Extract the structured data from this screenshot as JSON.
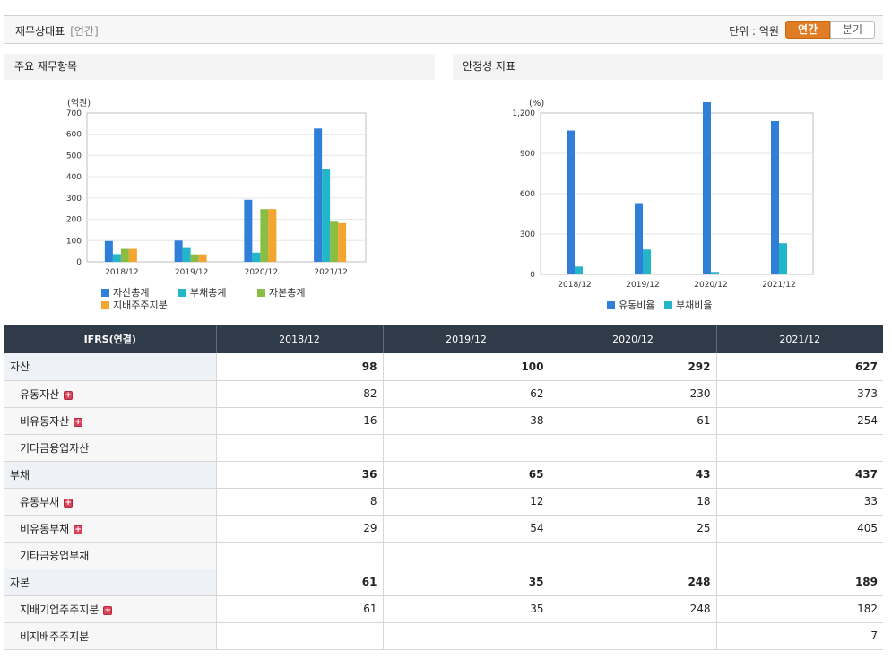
{
  "header": {
    "title": "재무상태표",
    "subtitle": "[연간]",
    "unit_label": "단위 : 억원",
    "toggle_annual": "연간",
    "toggle_quarter": "분기"
  },
  "panels": {
    "left_title": "주요 재무항목",
    "right_title": "안정성 지표"
  },
  "chart_data": [
    {
      "type": "bar",
      "title": "주요 재무항목",
      "ylabel": "(억원)",
      "ylim": [
        0,
        700
      ],
      "yticks": [
        0,
        100,
        200,
        300,
        400,
        500,
        600,
        700
      ],
      "yticklabels": [
        "0",
        "100",
        "200",
        "300",
        "400",
        "500",
        "600",
        "700"
      ],
      "categories": [
        "2018/12",
        "2019/12",
        "2020/12",
        "2021/12"
      ],
      "series": [
        {
          "name": "자산총계",
          "color": "#2f7ed8",
          "values": [
            98,
            100,
            292,
            627
          ]
        },
        {
          "name": "부채총계",
          "color": "#23b5c8",
          "values": [
            36,
            65,
            43,
            437
          ]
        },
        {
          "name": "자본총계",
          "color": "#8bbd45",
          "values": [
            61,
            35,
            248,
            189
          ]
        },
        {
          "name": "지배주주지분",
          "color": "#f4a530",
          "values": [
            61,
            35,
            248,
            182
          ]
        }
      ],
      "grid": true,
      "legend": "bottom-left"
    },
    {
      "type": "bar",
      "title": "안정성 지표",
      "ylabel": "(%)",
      "ylim": [
        0,
        1200
      ],
      "yticks": [
        0,
        300,
        600,
        900,
        1200
      ],
      "yticklabels": [
        "0",
        "300",
        "600",
        "900",
        "1,200"
      ],
      "categories": [
        "2018/12",
        "2019/12",
        "2020/12",
        "2021/12"
      ],
      "series": [
        {
          "name": "유동비율",
          "color": "#2f7ed8",
          "values": [
            1070,
            530,
            1280,
            1140
          ]
        },
        {
          "name": "부채비율",
          "color": "#23b5c8",
          "values": [
            58,
            185,
            18,
            232
          ]
        }
      ],
      "grid": true,
      "legend": "bottom"
    }
  ],
  "table": {
    "headers": [
      "IFRS(연결)",
      "2018/12",
      "2019/12",
      "2020/12",
      "2021/12"
    ],
    "rows": [
      {
        "label": "자산",
        "values": [
          "98",
          "100",
          "292",
          "627"
        ]
      },
      {
        "label": "유동자산",
        "values": [
          "82",
          "62",
          "230",
          "373"
        ]
      },
      {
        "label": "비유동자산",
        "values": [
          "16",
          "38",
          "61",
          "254"
        ]
      },
      {
        "label": "기타금융업자산",
        "values": [
          "",
          "",
          "",
          ""
        ]
      },
      {
        "label": "부채",
        "values": [
          "36",
          "65",
          "43",
          "437"
        ]
      },
      {
        "label": "유동부채",
        "values": [
          "8",
          "12",
          "18",
          "33"
        ]
      },
      {
        "label": "비유동부채",
        "values": [
          "29",
          "54",
          "25",
          "405"
        ]
      },
      {
        "label": "기타금융업부채",
        "values": [
          "",
          "",
          "",
          ""
        ]
      },
      {
        "label": "자본",
        "values": [
          "61",
          "35",
          "248",
          "189"
        ]
      },
      {
        "label": "지배기업주주지분",
        "values": [
          "61",
          "35",
          "248",
          "182"
        ]
      },
      {
        "label": "비지배주주지분",
        "values": [
          "",
          "",
          "",
          "7"
        ]
      }
    ]
  }
}
